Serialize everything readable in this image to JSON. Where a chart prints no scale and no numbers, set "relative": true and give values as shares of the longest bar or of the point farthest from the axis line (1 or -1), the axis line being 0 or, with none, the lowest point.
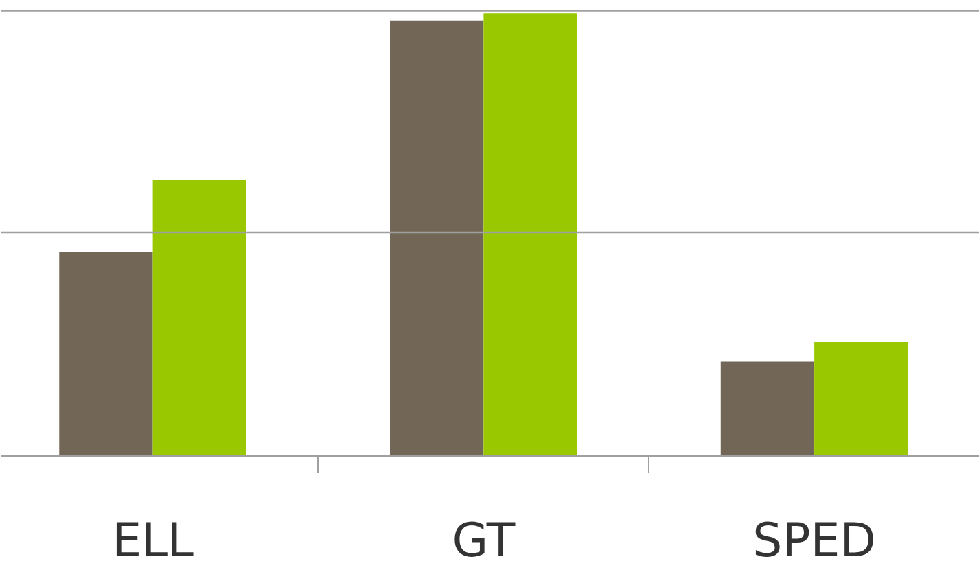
{
  "chart_data": {
    "type": "bar",
    "relative": true,
    "categories": [
      "ELL",
      "GT",
      "SPED"
    ],
    "series": [
      {
        "color": "#726656",
        "values": [
          0.461,
          0.984,
          0.213
        ]
      },
      {
        "color": "#99c800",
        "values": [
          0.624,
          1,
          0.257
        ]
      }
    ],
    "ref_lines": [
      {
        "axis": "y",
        "value": 0.505,
        "color": "#a0a0a0"
      },
      {
        "axis": "y",
        "value": 1.006,
        "color": "#a0a0a0"
      }
    ]
  }
}
